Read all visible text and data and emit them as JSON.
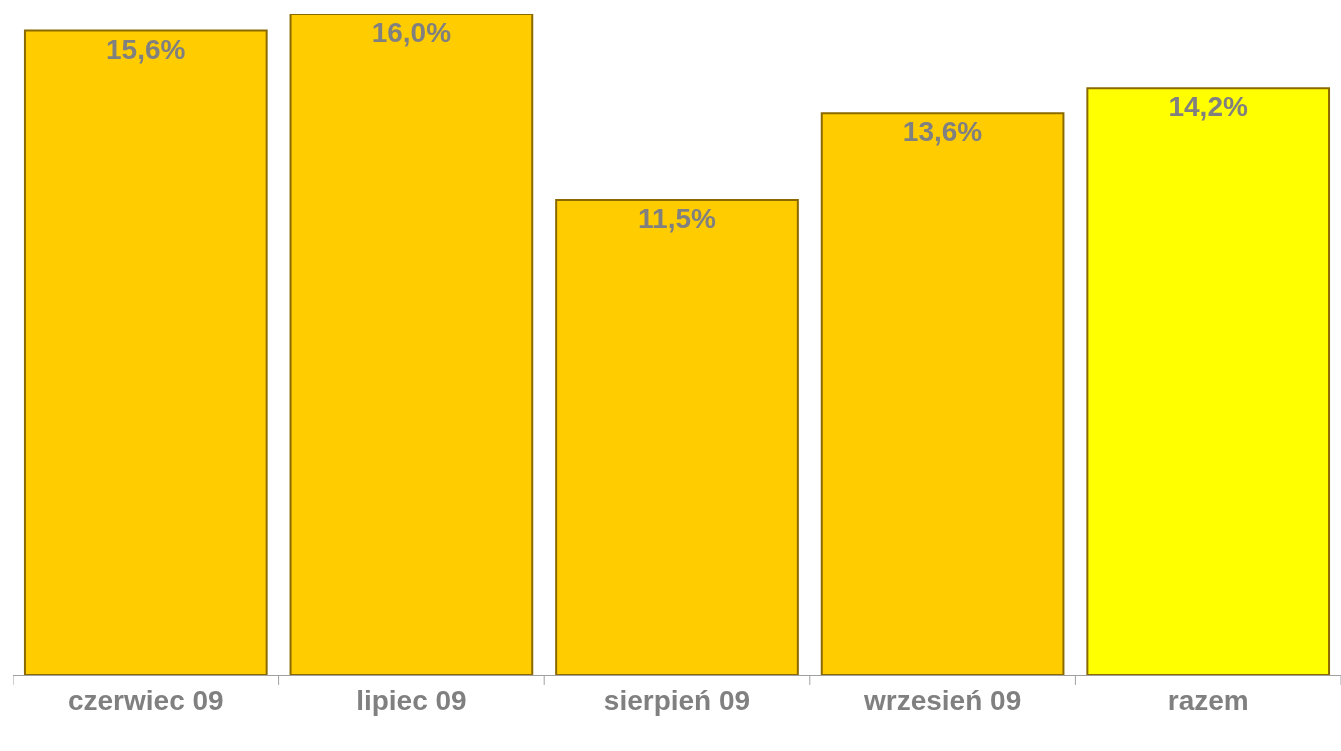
{
  "chart_data": {
    "type": "bar",
    "categories": [
      "czerwiec 09",
      "lipiec 09",
      "sierpień 09",
      "wrzesień 09",
      "razem"
    ],
    "values": [
      15.6,
      16.0,
      11.5,
      13.6,
      14.2
    ],
    "value_labels": [
      "15,6%",
      "16,0%",
      "11,5%",
      "13,6%",
      "14,2%"
    ],
    "colors": [
      "#ffcc00",
      "#ffcc00",
      "#ffcc00",
      "#ffcc00",
      "#ffff00"
    ],
    "legend": false
  }
}
